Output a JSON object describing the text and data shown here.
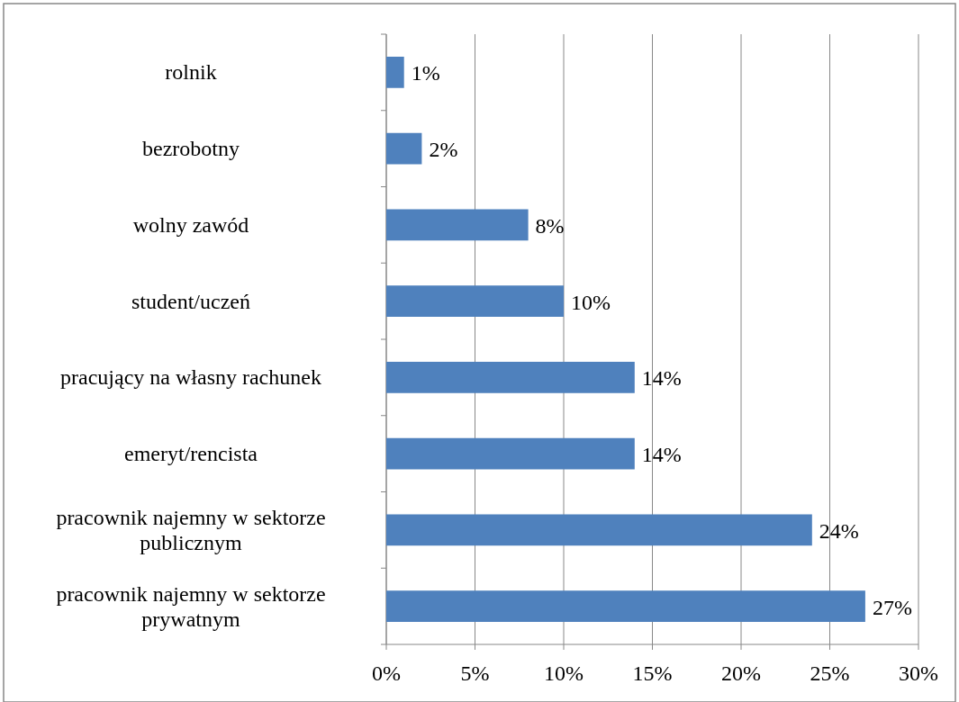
{
  "chart_data": {
    "type": "bar",
    "orientation": "horizontal",
    "categories": [
      "rolnik",
      "bezrobotny",
      "wolny zawód",
      "student/uczeń",
      "pracujący na własny rachunek",
      "emeryt/rencista",
      "pracownik najemny w sektorze publicznym",
      "pracownik najemny w sektorze prywatnym"
    ],
    "values": [
      1,
      2,
      8,
      10,
      14,
      14,
      24,
      27
    ],
    "value_labels": [
      "1%",
      "2%",
      "8%",
      "10%",
      "14%",
      "14%",
      "24%",
      "27%"
    ],
    "color": "#4f81bd",
    "xlim": [
      0,
      30
    ],
    "xticks": [
      {
        "value": 0,
        "label": "0%"
      },
      {
        "value": 5,
        "label": "5%"
      },
      {
        "value": 10,
        "label": "10%"
      },
      {
        "value": 15,
        "label": "15%"
      },
      {
        "value": 20,
        "label": "20%"
      },
      {
        "value": 25,
        "label": "25%"
      },
      {
        "value": 30,
        "label": "30%"
      }
    ],
    "grid": "x"
  }
}
